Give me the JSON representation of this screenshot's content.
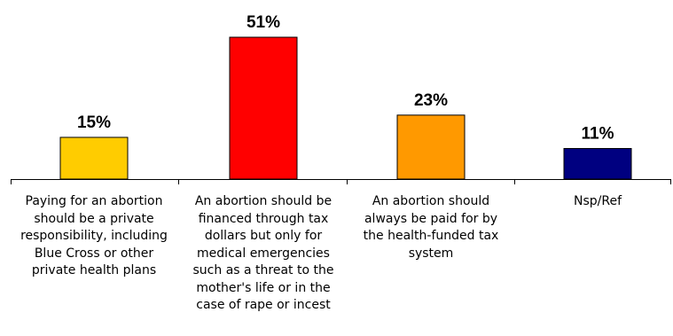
{
  "chart_data": {
    "type": "bar",
    "categories": [
      "Paying for an abortion should be a private responsibility, including Blue Cross or other private health plans",
      "An abortion should be financed through tax dollars but only for medical emergencies such as a threat to the mother's life or in the case of rape or incest",
      "An abortion should always be paid for by the health-funded tax system",
      "Nsp/Ref"
    ],
    "category_lines": [
      [
        "Paying for an abortion",
        "should be a private",
        "responsibility, including",
        "Blue Cross or other",
        "private health plans"
      ],
      [
        "An abortion should be",
        "financed through tax",
        "dollars but only for",
        "medical emergencies",
        "such as a threat to the",
        "mother's life or in the",
        "case of rape or incest"
      ],
      [
        "An abortion should",
        "always be paid for by",
        "the health-funded tax",
        "system"
      ],
      [
        "Nsp/Ref"
      ]
    ],
    "values": [
      15,
      51,
      23,
      11
    ],
    "data_labels": [
      "15%",
      "51%",
      "23%",
      "11%"
    ],
    "colors": [
      "#FFCC00",
      "#FF0000",
      "#FF9900",
      "#000080"
    ],
    "unit": "%",
    "ylim": [
      0,
      51
    ],
    "grid": false,
    "legend": "none"
  }
}
